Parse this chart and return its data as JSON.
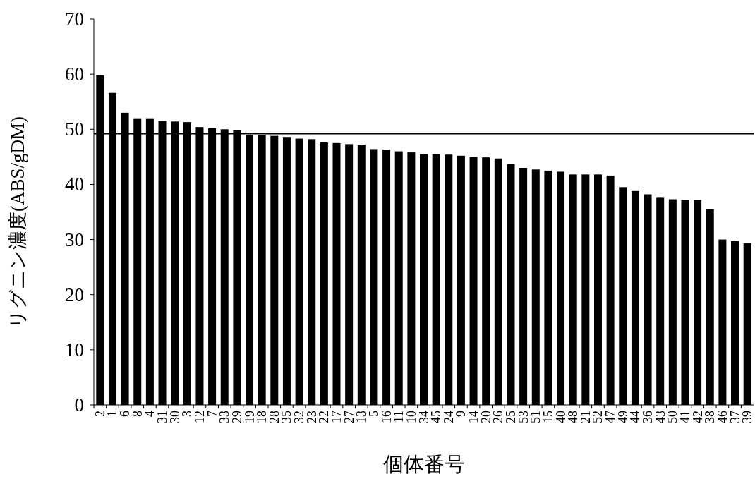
{
  "chart_data": {
    "type": "bar",
    "xlabel": "個体番号",
    "ylabel": "リグニン濃度(ABS/gDM)",
    "categories": [
      "2",
      "1",
      "6",
      "8",
      "4",
      "31",
      "30",
      "3",
      "12",
      "7",
      "33",
      "29",
      "19",
      "18",
      "28",
      "35",
      "32",
      "23",
      "22",
      "17",
      "27",
      "13",
      "5",
      "16",
      "11",
      "10",
      "34",
      "45",
      "24",
      "9",
      "14",
      "20",
      "26",
      "25",
      "53",
      "51",
      "15",
      "40",
      "48",
      "21",
      "52",
      "47",
      "49",
      "44",
      "36",
      "43",
      "50",
      "41",
      "42",
      "38",
      "46",
      "37",
      "39"
    ],
    "values": [
      59.8,
      56.6,
      53.0,
      52.0,
      52.0,
      51.5,
      51.4,
      51.3,
      50.4,
      50.2,
      50.0,
      49.8,
      49.0,
      49.0,
      48.8,
      48.6,
      48.3,
      48.2,
      47.6,
      47.5,
      47.3,
      47.2,
      46.4,
      46.3,
      46.0,
      45.8,
      45.5,
      45.5,
      45.4,
      45.2,
      45.0,
      44.9,
      44.7,
      43.7,
      43.0,
      42.7,
      42.5,
      42.3,
      41.8,
      41.8,
      41.8,
      41.6,
      39.5,
      38.8,
      38.2,
      37.7,
      37.3,
      37.2,
      37.2,
      35.5,
      30.0,
      29.7,
      29.3
    ],
    "color": "#000000",
    "ylim": [
      0,
      70
    ],
    "yticks": [
      0,
      10,
      20,
      30,
      40,
      50,
      60,
      70
    ],
    "ref_lines": [
      {
        "axis": "y",
        "value": 49.2,
        "color": "#000000"
      }
    ]
  }
}
